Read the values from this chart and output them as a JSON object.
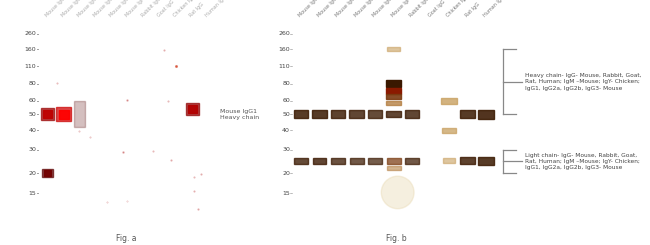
{
  "fig_a": {
    "columns": [
      "Mouse IgG",
      "Mouse IgG1",
      "Mouse IgG2a",
      "Mouse IgG2b",
      "Mouse IgG3",
      "Mouse IgM",
      "Rabbit IgG",
      "Goat IgG",
      "Chicken IgY",
      "Rat IgG",
      "Human IgG"
    ],
    "annotation": "Mouse IgG1\nHeavy chain",
    "fig_label": "Fig. a",
    "ylabel_values": [
      "260",
      "160",
      "110",
      "80",
      "60",
      "50",
      "40",
      "30",
      "20",
      "15"
    ]
  },
  "fig_b": {
    "columns": [
      "Mouse IgG",
      "Mouse IgG1",
      "Mouse IgG2a",
      "Mouse IgG2b",
      "Mouse IgG3",
      "Mouse IgM",
      "Rabbit IgG",
      "Goat IgG",
      "Chicken IgY",
      "Rat IgG",
      "Human IgG"
    ],
    "fig_label": "Fig. b",
    "ylabel_values": [
      "260",
      "160",
      "110",
      "80",
      "60",
      "50",
      "40",
      "30",
      "20",
      "15"
    ],
    "heavy_chain_label": "Heavy chain- IgG- Mouse, Rabbit, Goat,\nRat, Human; IgM –Mouse; IgY- Chicken;\nIgG1, IgG2a, IgG2b, IgG3- Mouse",
    "light_chain_label": "Light chain- IgG- Mouse, Rabbit, Goat,\nRat, Human; IgM –Mouse; IgY- Chicken;\nIgG1, IgG2a, IgG2b, IgG3- Mouse"
  }
}
